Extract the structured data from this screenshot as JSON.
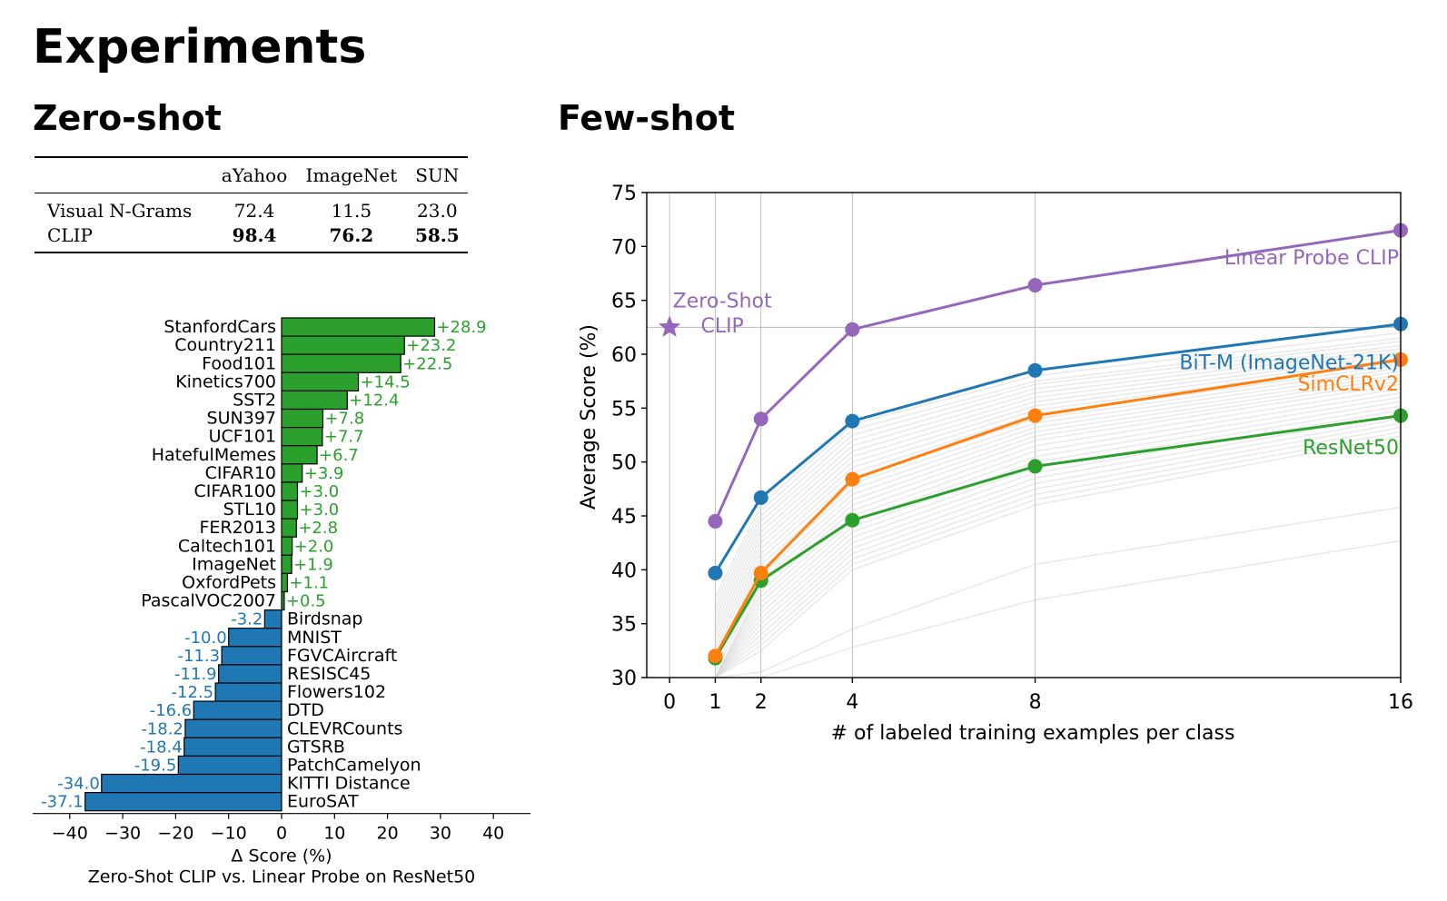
{
  "page": {
    "title": "Experiments",
    "zero_shot_heading": "Zero-shot",
    "few_shot_heading": "Few-shot"
  },
  "zero_shot_table": {
    "columns": [
      "",
      "aYahoo",
      "ImageNet",
      "SUN"
    ],
    "rows": [
      {
        "label": "Visual N-Grams",
        "values": [
          "72.4",
          "11.5",
          "23.0"
        ],
        "bold": false
      },
      {
        "label": "CLIP",
        "values": [
          "98.4",
          "76.2",
          "58.5"
        ],
        "bold": true
      }
    ]
  },
  "chart_data": [
    {
      "type": "bar",
      "orientation": "horizontal",
      "xlabel": "Δ Score (%)",
      "subtitle": "Zero-Shot CLIP vs. Linear Probe on ResNet50",
      "xlim": [
        -47,
        47
      ],
      "xticks": [
        -40,
        -30,
        -20,
        -10,
        0,
        10,
        20,
        30,
        40
      ],
      "xtick_labels": [
        "−40",
        "−30",
        "−20",
        "−10",
        "0",
        "10",
        "20",
        "30",
        "40"
      ],
      "colors": {
        "positive": "#2ca02c",
        "negative": "#1f77b4",
        "positive_label": "#2ca02c",
        "negative_label": "#1f77b4"
      },
      "categories": [
        "StanfordCars",
        "Country211",
        "Food101",
        "Kinetics700",
        "SST2",
        "SUN397",
        "UCF101",
        "HatefulMemes",
        "CIFAR10",
        "CIFAR100",
        "STL10",
        "FER2013",
        "Caltech101",
        "ImageNet",
        "OxfordPets",
        "PascalVOC2007",
        "Birdsnap",
        "MNIST",
        "FGVCAircraft",
        "RESISC45",
        "Flowers102",
        "DTD",
        "CLEVRCounts",
        "GTSRB",
        "PatchCamelyon",
        "KITTI Distance",
        "EuroSAT"
      ],
      "values": [
        28.9,
        23.2,
        22.5,
        14.5,
        12.4,
        7.8,
        7.7,
        6.7,
        3.9,
        3.0,
        3.0,
        2.8,
        2.0,
        1.9,
        1.1,
        0.5,
        -3.2,
        -10.0,
        -11.3,
        -11.9,
        -12.5,
        -16.6,
        -18.2,
        -18.4,
        -19.5,
        -34.0,
        -37.1
      ],
      "value_labels": [
        "+28.9",
        "+23.2",
        "+22.5",
        "+14.5",
        "+12.4",
        "+7.8",
        "+7.7",
        "+6.7",
        "+3.9",
        "+3.0",
        "+3.0",
        "+2.8",
        "+2.0",
        "+1.9",
        "+1.1",
        "+0.5",
        "-3.2",
        "-10.0",
        "-11.3",
        "-11.9",
        "-12.5",
        "-16.6",
        "-18.2",
        "-18.4",
        "-19.5",
        "-34.0",
        "-37.1"
      ]
    },
    {
      "type": "line",
      "xlabel": "# of labeled training examples per class",
      "ylabel": "Average Score (%)",
      "xlim": [
        -0.5,
        16
      ],
      "ylim": [
        30,
        75
      ],
      "xticks": [
        0,
        1,
        2,
        4,
        8,
        16
      ],
      "yticks": [
        30,
        35,
        40,
        45,
        50,
        55,
        60,
        65,
        70,
        75
      ],
      "grid": true,
      "x": [
        1,
        2,
        4,
        8,
        16
      ],
      "series": [
        {
          "name": "Linear Probe CLIP",
          "color": "#9467bd",
          "values": [
            44.5,
            54.0,
            62.3,
            66.4,
            71.5
          ]
        },
        {
          "name": "BiT-M (ImageNet-21K)",
          "color": "#1f77b4",
          "values": [
            39.7,
            46.7,
            53.8,
            58.5,
            62.8
          ]
        },
        {
          "name": "SimCLRv2",
          "color": "#ff7f0e",
          "values": [
            32.0,
            39.7,
            48.4,
            54.3,
            59.5
          ]
        },
        {
          "name": "ResNet50",
          "color": "#2ca02c",
          "values": [
            31.8,
            39.0,
            44.6,
            49.6,
            54.3
          ]
        }
      ],
      "zero_shot_point": {
        "label_line1": "Zero-Shot",
        "label_line2": "CLIP",
        "x": 0,
        "y": 62.5,
        "color": "#9467bd",
        "marker": "star"
      },
      "reference_line_y": 62.5,
      "background_series_color": "#d9d9d9",
      "background_series": [
        [
          37.5,
          46.0,
          53.5,
          58.0,
          62.0
        ],
        [
          37.0,
          45.5,
          53.0,
          57.5,
          61.5
        ],
        [
          36.5,
          45.0,
          52.5,
          57.2,
          61.2
        ],
        [
          36.0,
          44.5,
          52.0,
          56.8,
          60.8
        ],
        [
          35.5,
          44.0,
          51.5,
          56.4,
          60.5
        ],
        [
          35.0,
          43.5,
          51.0,
          56.0,
          60.2
        ],
        [
          34.5,
          43.0,
          50.5,
          55.6,
          59.9
        ],
        [
          34.0,
          42.5,
          50.0,
          55.2,
          59.6
        ],
        [
          33.5,
          42.0,
          49.5,
          54.8,
          59.3
        ],
        [
          33.0,
          41.5,
          49.0,
          54.4,
          59.0
        ],
        [
          32.5,
          41.0,
          48.5,
          54.0,
          58.7
        ],
        [
          32.0,
          40.5,
          48.0,
          53.6,
          58.4
        ],
        [
          31.5,
          40.0,
          47.5,
          53.2,
          58.1
        ],
        [
          31.0,
          39.5,
          47.0,
          52.8,
          57.8
        ],
        [
          30.5,
          39.0,
          46.5,
          52.4,
          57.5
        ],
        [
          30.0,
          38.5,
          46.0,
          52.0,
          57.2
        ],
        [
          30.0,
          38.0,
          45.5,
          51.5,
          56.8
        ],
        [
          30.0,
          37.5,
          45.0,
          51.0,
          56.4
        ],
        [
          30.0,
          37.0,
          44.5,
          50.5,
          56.0
        ],
        [
          30.0,
          36.5,
          44.0,
          50.0,
          55.6
        ],
        [
          30.0,
          36.0,
          43.5,
          49.5,
          55.2
        ],
        [
          30.0,
          35.5,
          43.0,
          49.0,
          54.8
        ],
        [
          30.0,
          35.0,
          42.5,
          48.5,
          54.4
        ],
        [
          30.0,
          34.5,
          42.0,
          48.0,
          54.0
        ],
        [
          30.0,
          34.0,
          41.5,
          47.5,
          53.6
        ],
        [
          30.0,
          33.5,
          41.0,
          47.0,
          53.2
        ],
        [
          30.0,
          33.0,
          40.5,
          46.5,
          52.8
        ],
        [
          30.0,
          32.5,
          40.0,
          46.0,
          52.4
        ],
        [
          30.0,
          30.5,
          34.5,
          40.5,
          45.8
        ],
        [
          30.0,
          30.0,
          32.8,
          37.2,
          42.7
        ]
      ]
    }
  ]
}
